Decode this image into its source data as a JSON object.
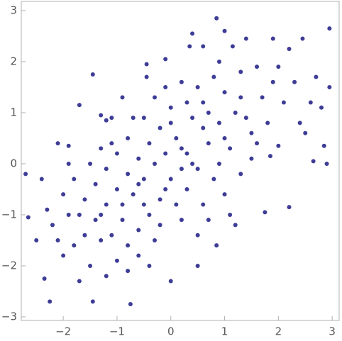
{
  "chart_data": {
    "type": "scatter",
    "color": "#3d3c96",
    "xlim": [
      -2.78,
      3.13
    ],
    "ylim": [
      -3.07,
      3.18
    ],
    "xticks": [
      {
        "value": -2,
        "label": "−2"
      },
      {
        "value": -1,
        "label": "−1"
      },
      0,
      1,
      2,
      3
    ],
    "yticks": [
      {
        "value": -3,
        "label": "−3"
      },
      {
        "value": -2,
        "label": "−2"
      },
      {
        "value": -1,
        "label": "−1"
      },
      0,
      1,
      2,
      3
    ],
    "x": [
      -2.7,
      -2.65,
      -2.5,
      -2.35,
      -2.25,
      -1.45,
      -0.75,
      2.95,
      0.85,
      0.4,
      1.0,
      2.95,
      2.85,
      2.65,
      2.9,
      -1.45,
      2.2,
      1.75,
      0.85,
      -2.1,
      -1.9,
      -1.7,
      -1.3,
      -1.2,
      -1.1,
      -0.9,
      -0.45,
      -0.45,
      -0.1,
      0.35,
      0.6,
      1.15,
      1.4,
      1.9,
      2.45,
      2.2,
      2.0,
      2.3,
      2.6,
      2.8,
      2.5,
      2.0,
      1.85,
      1.5,
      1.3,
      1.7,
      1.2,
      1.0,
      0.8,
      0.6,
      0.4,
      0.2,
      0.0,
      -0.2,
      -0.4,
      -0.6,
      -0.8,
      -1.0,
      -1.2,
      -1.4,
      -1.6,
      -1.8,
      -2.0,
      -2.2,
      -2.0,
      -1.8,
      -1.5,
      -1.3,
      -1.0,
      -0.8,
      -0.5,
      -0.3,
      0.1,
      0.3,
      0.5,
      0.7,
      0.9,
      1.1,
      1.3,
      1.0,
      0.6,
      0.3,
      0.0,
      -0.2,
      -0.4,
      -0.6,
      -0.8,
      -1.0,
      -1.2,
      -1.5,
      -1.7,
      -0.3,
      0.0,
      -0.4,
      0.2,
      0.5,
      0.4,
      0.2,
      -0.1,
      0.8,
      1.2,
      1.5,
      1.8,
      2.1,
      1.6,
      0.9,
      0.5,
      -0.1,
      -0.7,
      -1.1,
      -1.4,
      -1.6,
      -1.9,
      -2.3,
      -2.1,
      -1.3,
      -0.9,
      -0.7,
      -0.5,
      -0.3,
      0.1,
      0.7,
      0.9,
      1.4,
      1.6,
      1.9,
      2.4,
      2.7,
      0.3,
      0.0,
      -0.2,
      -0.6,
      -1.1,
      -1.7,
      -2.4,
      -1.9,
      -1.2,
      -0.9,
      -0.6,
      0.6,
      1.0,
      1.3,
      0.7,
      0.2,
      -0.1,
      -0.5,
      -1.3,
      -0.8,
      0.5,
      1.1
    ],
    "y": [
      -0.2,
      -1.05,
      -1.5,
      -2.25,
      -2.7,
      -2.7,
      -2.75,
      2.65,
      2.85,
      2.55,
      2.6,
      1.5,
      0.35,
      0.05,
      0.0,
      1.75,
      -0.85,
      -0.95,
      -1.6,
      0.4,
      0.35,
      1.15,
      0.95,
      0.85,
      0.9,
      1.3,
      1.7,
      1.95,
      2.05,
      2.3,
      2.3,
      2.3,
      2.45,
      2.45,
      2.45,
      2.25,
      1.9,
      1.6,
      1.2,
      1.1,
      0.6,
      0.35,
      0.15,
      0.6,
      1.8,
      1.3,
      1.0,
      1.4,
      1.7,
      1.2,
      0.9,
      1.6,
      1.1,
      0.7,
      0.4,
      0.1,
      -0.2,
      -0.5,
      -0.8,
      -1.1,
      -1.4,
      -1.6,
      -1.8,
      -1.2,
      -0.6,
      -0.3,
      0.0,
      0.3,
      0.2,
      0.5,
      0.9,
      1.3,
      0.5,
      0.2,
      -0.1,
      0.4,
      0.8,
      0.3,
      -0.2,
      -0.6,
      -0.8,
      -0.5,
      -0.3,
      -0.7,
      -1.0,
      -1.3,
      -1.6,
      -1.9,
      -2.2,
      -2.0,
      -2.3,
      -1.5,
      -2.3,
      -2.0,
      -1.1,
      -1.4,
      0.0,
      -0.1,
      0.2,
      -0.3,
      -1.2,
      0.1,
      0.8,
      1.2,
      1.9,
      2.0,
      1.5,
      1.5,
      0.9,
      0.4,
      -0.4,
      -0.7,
      -1.0,
      -0.9,
      -1.5,
      -1.5,
      -1.1,
      -0.6,
      -0.3,
      0.0,
      -0.8,
      -1.1,
      0.0,
      0.9,
      0.4,
      1.6,
      0.8,
      1.7,
      1.2,
      0.8,
      -1.2,
      -1.8,
      -1.4,
      -1.0,
      -0.3,
      0.0,
      -0.1,
      -0.8,
      -0.4,
      0.7,
      0.5,
      1.3,
      1.0,
      0.3,
      -0.5,
      -0.8,
      -1.0,
      -2.1,
      -2.0,
      -1.0
    ]
  }
}
